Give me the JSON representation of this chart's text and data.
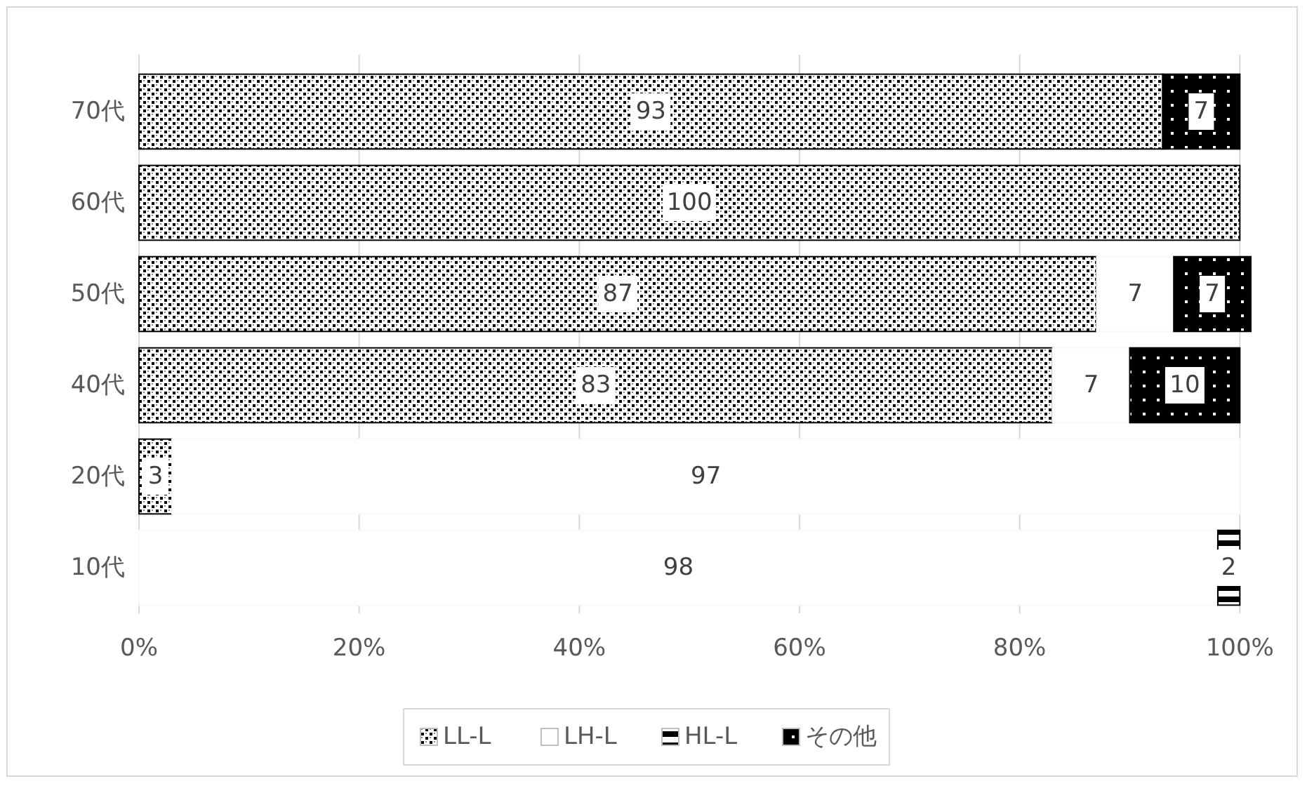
{
  "chart_data": {
    "type": "bar",
    "orientation": "horizontal",
    "stacked": true,
    "categories": [
      "70代",
      "60代",
      "50代",
      "40代",
      "20代",
      "10代"
    ],
    "series": [
      {
        "name": "LL-L",
        "color": "#000000",
        "values": [
          93,
          100,
          87,
          83,
          3,
          null
        ]
      },
      {
        "name": "LH-L",
        "color": "#ffffff",
        "values": [
          null,
          null,
          7,
          7,
          97,
          98
        ]
      },
      {
        "name": "HL-L",
        "color": "#000000",
        "values": [
          null,
          null,
          null,
          null,
          null,
          2
        ]
      },
      {
        "name": "その他",
        "color": "#000000",
        "values": [
          7,
          null,
          7,
          10,
          null,
          null
        ]
      }
    ],
    "xlim": [
      0,
      101
    ],
    "xticks": [
      {
        "value": 0,
        "label": "0%"
      },
      {
        "value": 20,
        "label": "20%"
      },
      {
        "value": 40,
        "label": "40%"
      },
      {
        "value": 60,
        "label": "60%"
      },
      {
        "value": 80,
        "label": "80%"
      },
      {
        "value": 100,
        "label": "100%"
      }
    ],
    "grid": "x",
    "legend": "bottom",
    "data_labels": true
  }
}
